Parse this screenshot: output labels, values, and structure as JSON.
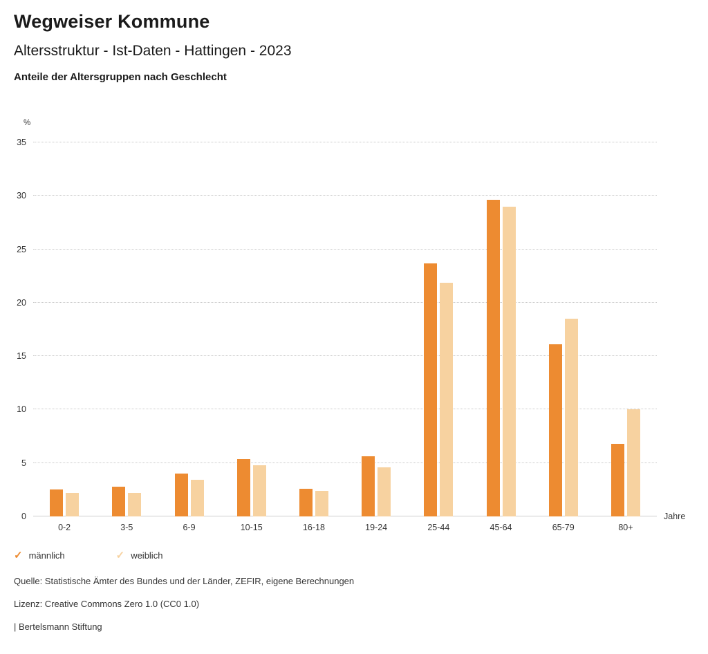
{
  "header": {
    "title": "Wegweiser Kommune",
    "subtitle": "Altersstruktur - Ist-Daten - Hattingen - 2023",
    "chart_title": "Anteile der Altersgruppen nach Geschlecht"
  },
  "chart_data": {
    "type": "bar",
    "categories": [
      "0-2",
      "3-5",
      "6-9",
      "10-15",
      "16-18",
      "19-24",
      "25-44",
      "45-64",
      "65-79",
      "80+"
    ],
    "series": [
      {
        "name": "männlich",
        "color": "#ED8B31",
        "values": [
          2.5,
          2.8,
          4.0,
          5.4,
          2.6,
          5.6,
          23.7,
          29.6,
          16.1,
          6.8
        ]
      },
      {
        "name": "weiblich",
        "color": "#F7D2A0",
        "values": [
          2.2,
          2.2,
          3.4,
          4.8,
          2.4,
          4.6,
          21.9,
          29.0,
          18.5,
          10.0
        ]
      }
    ],
    "title": "Anteile der Altersgruppen nach Geschlecht",
    "xlabel": "Jahre",
    "ylabel": "%",
    "ylim": [
      0,
      35
    ],
    "ytick_step": 5,
    "grid": true,
    "legend_position": "bottom"
  },
  "legend": {
    "items": [
      {
        "label": "männlich",
        "color": "#ED8B31",
        "icon": "check"
      },
      {
        "label": "weiblich",
        "color": "#F7D2A0",
        "icon": "check"
      }
    ]
  },
  "footer": {
    "source": "Quelle: Statistische Ämter des Bundes und der Länder, ZEFIR, eigene Berechnungen",
    "license": "Lizenz: Creative Commons Zero 1.0 (CC0 1.0)",
    "brand": "| Bertelsmann Stiftung"
  }
}
